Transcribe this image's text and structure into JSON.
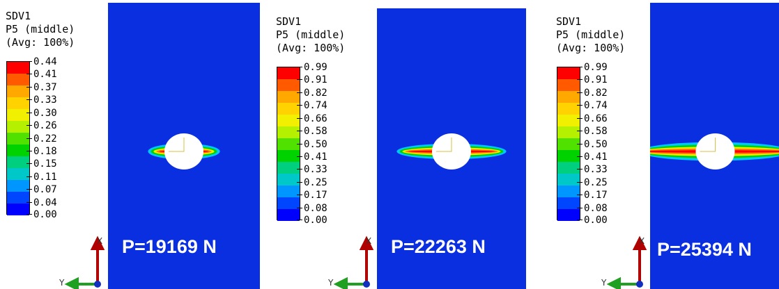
{
  "legend_header": [
    "SDV1",
    "P5 (middle)",
    "(Avg: 100%)"
  ],
  "panels": [
    {
      "load": "P=19169 N",
      "ticks": [
        "0.44",
        "0.41",
        "0.37",
        "0.33",
        "0.30",
        "0.26",
        "0.22",
        "0.18",
        "0.15",
        "0.11",
        "0.07",
        "0.04",
        "0.00"
      ],
      "damage_extent": 0.2
    },
    {
      "load": "P=22263 N",
      "ticks": [
        "0.99",
        "0.91",
        "0.82",
        "0.74",
        "0.66",
        "0.58",
        "0.50",
        "0.41",
        "0.33",
        "0.25",
        "0.17",
        "0.08",
        "0.00"
      ],
      "damage_extent": 0.5
    },
    {
      "load": "P=25394 N",
      "ticks": [
        "0.99",
        "0.91",
        "0.82",
        "0.74",
        "0.66",
        "0.58",
        "0.50",
        "0.41",
        "0.33",
        "0.25",
        "0.17",
        "0.08",
        "0.00"
      ],
      "damage_extent": 1.0
    }
  ],
  "axis_letters": {
    "vertical": "X",
    "horizontal": "Y"
  },
  "colormap": [
    "#ff0000",
    "#ff5a00",
    "#ffa800",
    "#ffd200",
    "#f0f000",
    "#b4f000",
    "#50e100",
    "#00d200",
    "#00cf80",
    "#00c8c8",
    "#0096ff",
    "#0046ff",
    "#0000ff"
  ]
}
